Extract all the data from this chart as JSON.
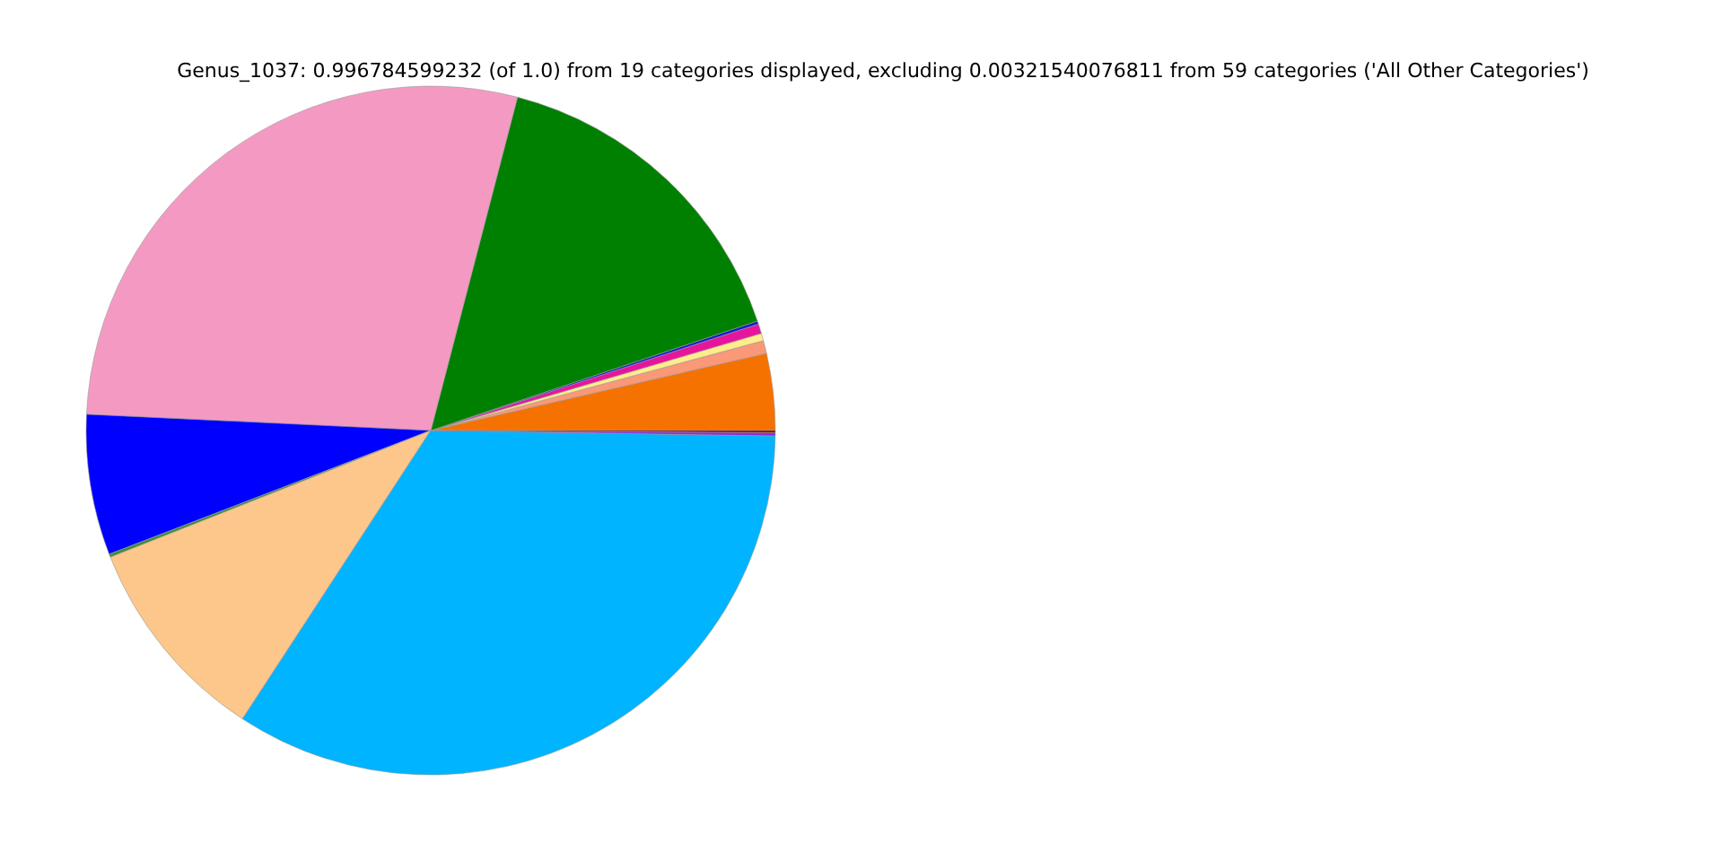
{
  "chart_data": {
    "type": "pie",
    "title": "Genus_1037: 0.996784599232 (of 1.0) from 19 categories displayed, excluding 0.00321540076811 from 59 categories ('All Other Categories')",
    "categories": [
      null,
      null,
      null,
      null,
      null,
      null,
      null,
      null,
      null,
      null,
      null,
      null,
      null
    ],
    "values": [
      3.6,
      0.6,
      0.35,
      0.45,
      0.15,
      15.8,
      28.3,
      6.6,
      0.15,
      9.8,
      33.95,
      0.15,
      0.1
    ],
    "colors": [
      "#f57200",
      "#fa9877",
      "#ffec8b",
      "#e7149c",
      "#1a1acd",
      "#008000",
      "#f49ac2",
      "#0000ff",
      "#3a8e3a",
      "#fdc68a",
      "#00b4ff",
      "#8a2be2",
      "#8b0000"
    ]
  }
}
